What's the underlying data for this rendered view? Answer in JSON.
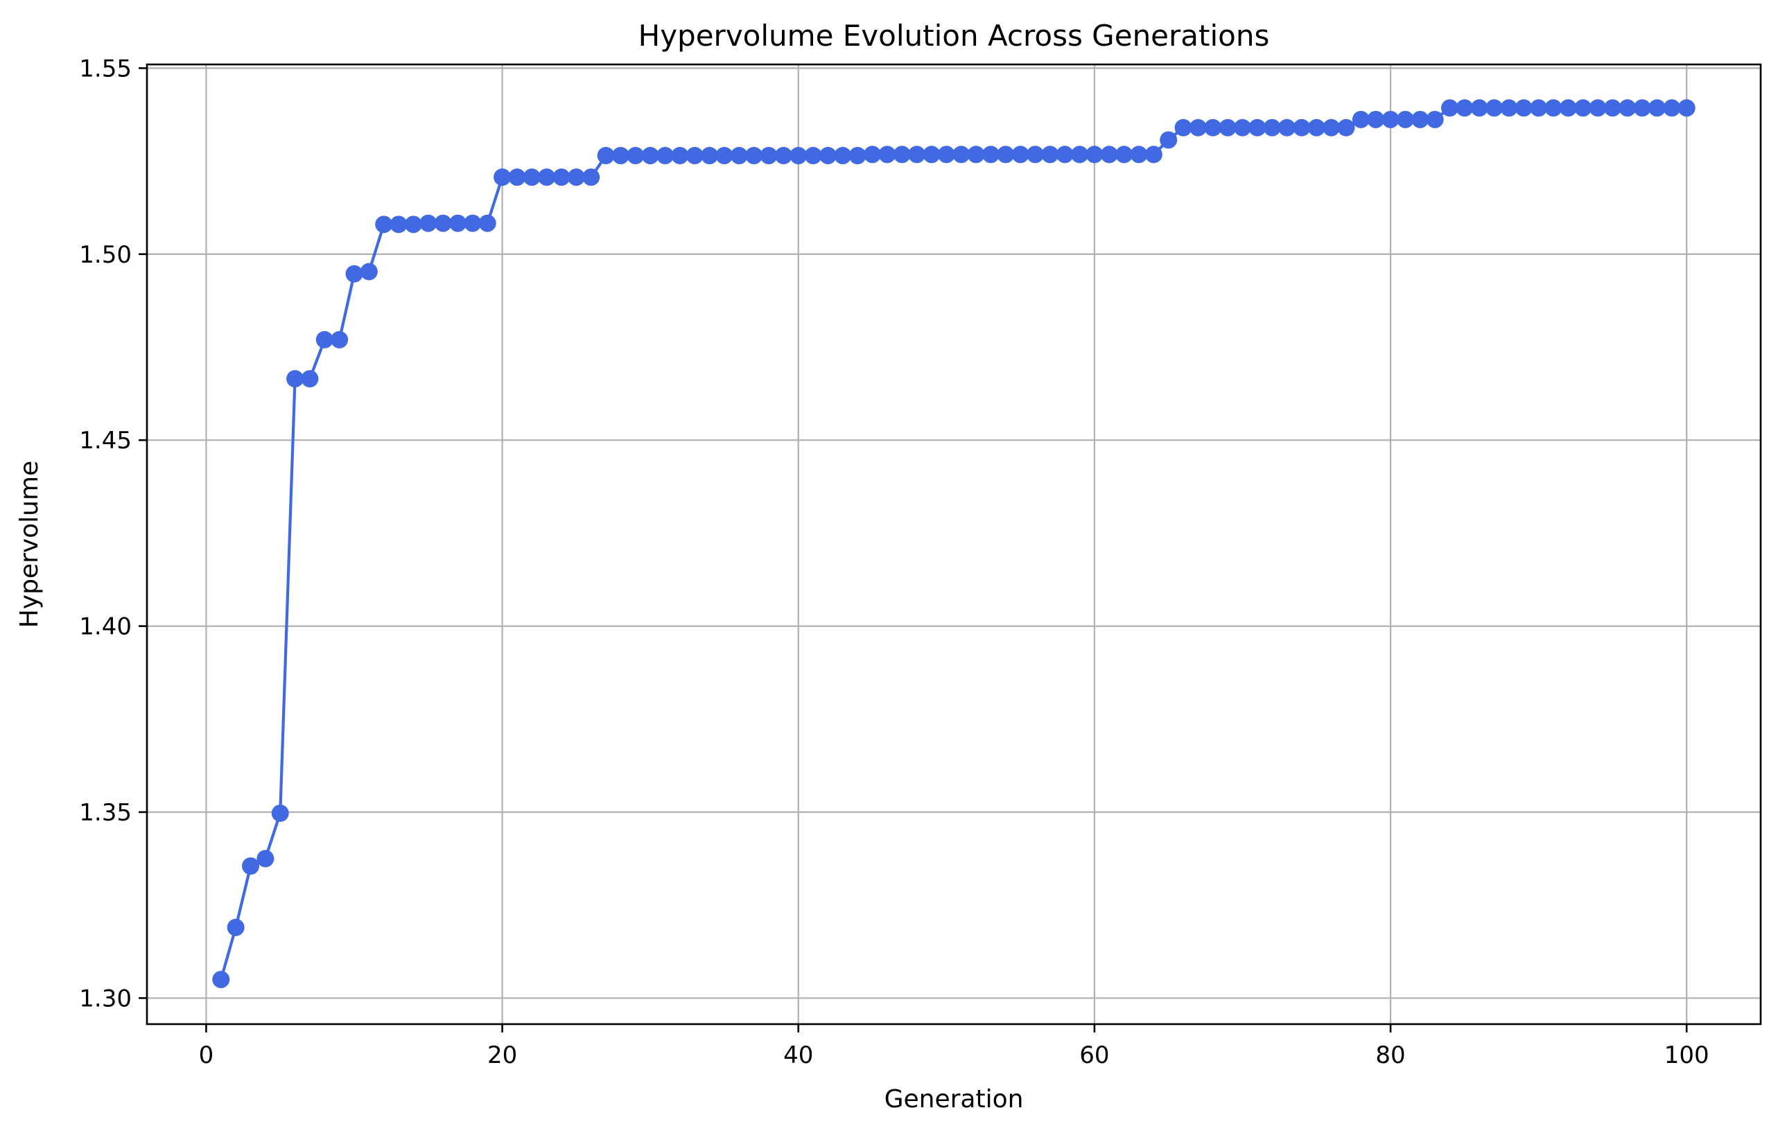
{
  "chart_data": {
    "type": "line",
    "title": "Hypervolume Evolution Across Generations",
    "xlabel": "Generation",
    "ylabel": "Hypervolume",
    "xlim": [
      -4,
      105
    ],
    "ylim": [
      1.293,
      1.551
    ],
    "xticks": [
      0,
      20,
      40,
      60,
      80,
      100
    ],
    "xtick_labels": [
      "0",
      "20",
      "40",
      "60",
      "80",
      "100"
    ],
    "yticks": [
      1.3,
      1.35,
      1.4,
      1.45,
      1.5,
      1.55
    ],
    "ytick_labels": [
      "1.30",
      "1.35",
      "1.40",
      "1.45",
      "1.50",
      "1.55"
    ],
    "grid": true,
    "colors": {
      "series": "#4169e1",
      "grid": "#b0b0b0",
      "frame": "#000000"
    },
    "series": [
      {
        "marker": "circle",
        "x": [
          1,
          2,
          3,
          4,
          5,
          6,
          7,
          8,
          9,
          10,
          11,
          12,
          13,
          14,
          15,
          16,
          17,
          18,
          19,
          20,
          21,
          22,
          23,
          24,
          25,
          26,
          27,
          28,
          29,
          30,
          31,
          32,
          33,
          34,
          35,
          36,
          37,
          38,
          39,
          40,
          41,
          42,
          43,
          44,
          45,
          46,
          47,
          48,
          49,
          50,
          51,
          52,
          53,
          54,
          55,
          56,
          57,
          58,
          59,
          60,
          61,
          62,
          63,
          64,
          65,
          66,
          67,
          68,
          69,
          70,
          71,
          72,
          73,
          74,
          75,
          76,
          77,
          78,
          79,
          80,
          81,
          82,
          83,
          84,
          85,
          86,
          87,
          88,
          89,
          90,
          91,
          92,
          93,
          94,
          95,
          96,
          97,
          98,
          99,
          100
        ],
        "values": [
          1.305,
          1.319,
          1.3355,
          1.3375,
          1.3497,
          1.4665,
          1.4665,
          1.477,
          1.477,
          1.4947,
          1.4953,
          1.508,
          1.508,
          1.508,
          1.5083,
          1.5083,
          1.5083,
          1.5083,
          1.5083,
          1.5207,
          1.5207,
          1.5207,
          1.5207,
          1.5207,
          1.5207,
          1.5207,
          1.5265,
          1.5265,
          1.5265,
          1.5265,
          1.5265,
          1.5265,
          1.5265,
          1.5265,
          1.5265,
          1.5265,
          1.5265,
          1.5265,
          1.5265,
          1.5265,
          1.5265,
          1.5265,
          1.5265,
          1.5265,
          1.5268,
          1.5268,
          1.5268,
          1.5268,
          1.5268,
          1.5268,
          1.5268,
          1.5268,
          1.5268,
          1.5268,
          1.5268,
          1.5268,
          1.5268,
          1.5268,
          1.5268,
          1.5268,
          1.5268,
          1.5268,
          1.5268,
          1.5268,
          1.5307,
          1.534,
          1.534,
          1.534,
          1.534,
          1.534,
          1.534,
          1.534,
          1.534,
          1.534,
          1.534,
          1.534,
          1.534,
          1.5362,
          1.5362,
          1.5362,
          1.5362,
          1.5362,
          1.5362,
          1.5393,
          1.5393,
          1.5393,
          1.5393,
          1.5393,
          1.5393,
          1.5393,
          1.5393,
          1.5393,
          1.5393,
          1.5393,
          1.5393,
          1.5393,
          1.5393,
          1.5393,
          1.5393,
          1.5393
        ]
      }
    ]
  }
}
